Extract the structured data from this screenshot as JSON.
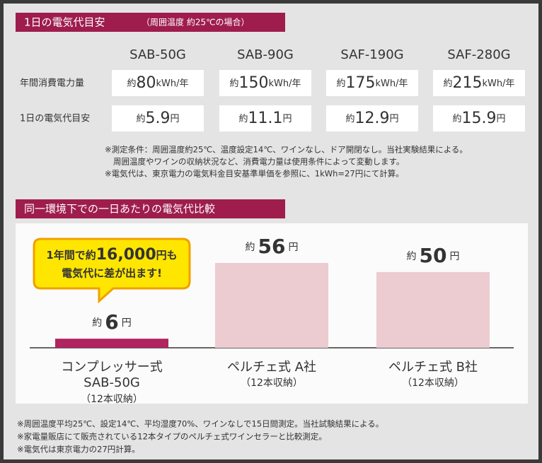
{
  "section1": {
    "title": "1日の電気代目安",
    "subtitle": "（周囲温度 約25℃の場合）",
    "models": [
      "SAB-50G",
      "SAB-90G",
      "SAF-190G",
      "SAF-280G"
    ],
    "rows": [
      {
        "label": "年間消費電力量",
        "prefix": "約",
        "unit": "kWh/年",
        "values": [
          80,
          150,
          175,
          215
        ]
      },
      {
        "label": "1日の電気代目安",
        "prefix": "約",
        "unit": "円",
        "values": [
          5.9,
          11.1,
          12.9,
          15.9
        ]
      }
    ],
    "notes": [
      "※測定条件：周囲温度約25℃、温度設定14℃、ワインなし、ドア開閉なし。当社実験結果による。",
      "周囲温度やワインの収納状況など、消費電力量は使用条件によって変動します。",
      "※電気代は、東京電力の電気料金目安基準単価を参照に、1kWh=27円にて計算。"
    ]
  },
  "chart_data": {
    "type": "bar",
    "title": "同一環境下での一日あたりの電気代比較",
    "categories": [
      "コンプレッサー式",
      "ペルチェ式 A社",
      "ペルチェ式 B社"
    ],
    "category_details": [
      [
        "SAB-50G",
        "（12本収納）"
      ],
      [
        "（12本収納）"
      ],
      [
        "（12本収納）"
      ]
    ],
    "values": [
      6,
      56,
      50
    ],
    "value_prefix": "約",
    "value_suffix": "円",
    "colors": [
      "#b0245f",
      "#eccbd1",
      "#eccbd1"
    ],
    "callout": {
      "prefix": "1年間で約",
      "amount": "16,000",
      "suffix": "円も",
      "line2": "電気代に差が出ます!"
    },
    "notes": [
      "※周囲温度平均25℃、設定14℃、平均湿度70%、ワインなしで15日間測定。当社試験結果による。",
      "※家電量販店にて販売されている12本タイプのペルチェ式ワインセラーと比較測定。",
      "※電気代は東京電力の27円計算。"
    ]
  }
}
